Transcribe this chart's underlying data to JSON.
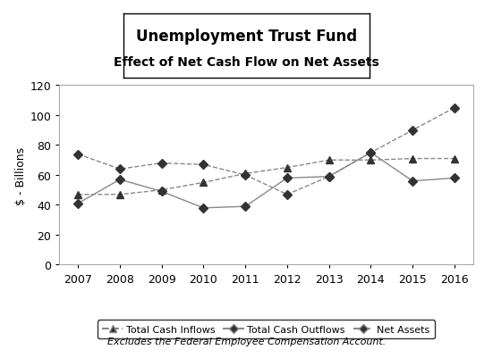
{
  "title_line1": "Unemployment Trust Fund",
  "title_line2": "Effect of Net Cash Flow on Net Assets",
  "ylabel": "$ - Billions",
  "footnote": "Excludes the Federal Employee Compensation Account.",
  "years": [
    2007,
    2008,
    2009,
    2010,
    2011,
    2012,
    2013,
    2014,
    2015,
    2016
  ],
  "total_cash_inflows": [
    47,
    47,
    50,
    55,
    61,
    65,
    70,
    70,
    71,
    71
  ],
  "total_cash_outflows": [
    41,
    57,
    49,
    38,
    39,
    58,
    59,
    75,
    56,
    58
  ],
  "net_assets": [
    74,
    64,
    68,
    67,
    60,
    47,
    59,
    75,
    90,
    105
  ],
  "ylim": [
    0,
    120
  ],
  "yticks": [
    0,
    20,
    40,
    60,
    80,
    100,
    120
  ],
  "background_color": "#ffffff",
  "line_color": "#888888",
  "marker_triangle": "^",
  "marker_diamond": "D",
  "legend_labels": [
    "Total Cash Inflows",
    "Total Cash Outflows",
    "Net Assets"
  ],
  "title_fontsize": 12,
  "subtitle_fontsize": 10,
  "axis_fontsize": 9,
  "legend_fontsize": 8,
  "footnote_fontsize": 8
}
